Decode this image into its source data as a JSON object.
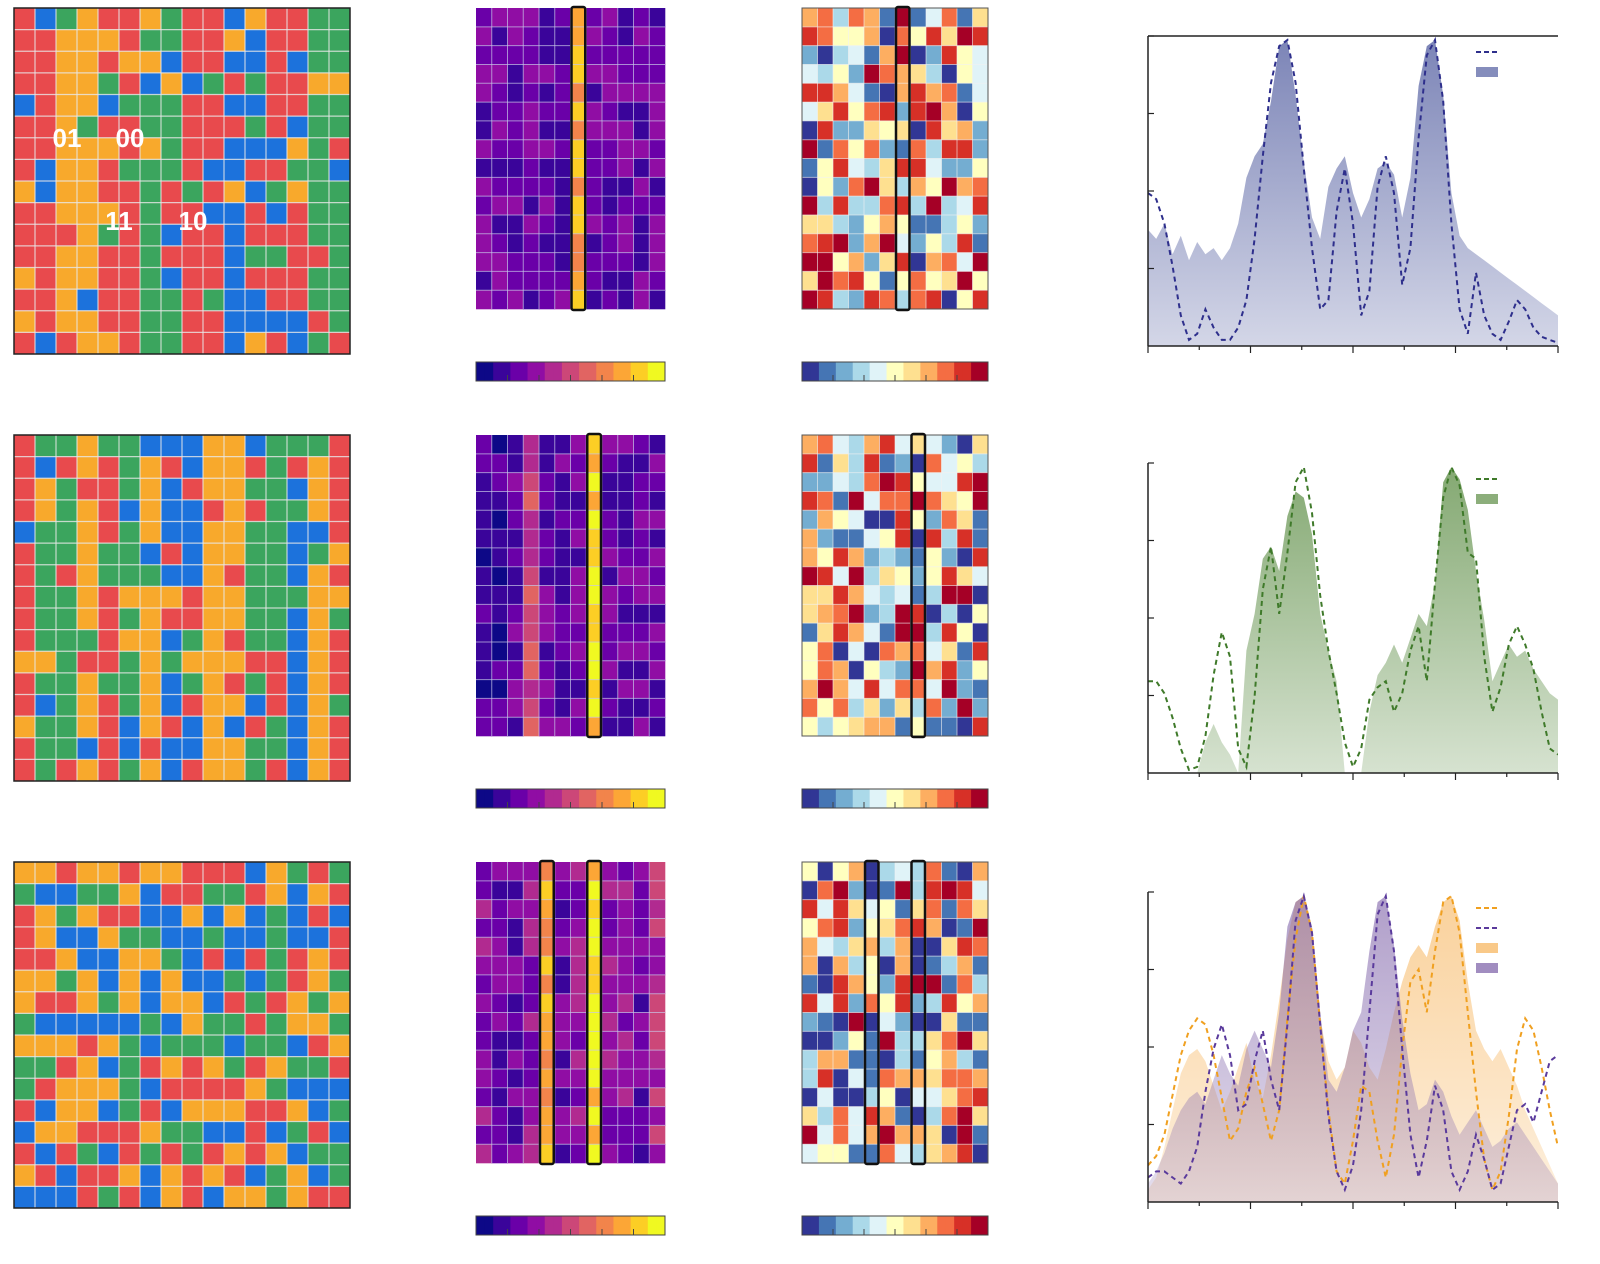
{
  "palette": {
    "coding": {
      "00": "#e84a4d",
      "01": "#f8a92c",
      "10": "#3ba55e",
      "11": "#1c72dc"
    },
    "plasma": [
      "#0d0887",
      "#3a049a",
      "#6a00a8",
      "#900da4",
      "#b12a90",
      "#cc4778",
      "#e16462",
      "#f2844b",
      "#fca636",
      "#fcce25",
      "#f0f921"
    ],
    "rdylbu": [
      "#313695",
      "#4575b4",
      "#74add1",
      "#abd9e9",
      "#e0f3f8",
      "#ffffbf",
      "#fee090",
      "#fdae61",
      "#f46d43",
      "#d73027",
      "#a50026"
    ],
    "series": {
      "blue": "#2e2f8c",
      "green": "#3f7a2a",
      "orange": "#f0a020",
      "purple": "#5a3a9c"
    },
    "fills": {
      "blue": "#6670ab",
      "green": "#6f9a5a",
      "orange": "#f7bb6b",
      "purple": "#8a70b0"
    }
  },
  "coding_labels": [
    "01",
    "00",
    "11",
    "10"
  ],
  "rows": [
    {
      "seed": 11,
      "col_bias": [
        0,
        0,
        1,
        1,
        0,
        0,
        2,
        2,
        0,
        0,
        3,
        3,
        0,
        0,
        2,
        2
      ],
      "highlight_cols": [
        6
      ],
      "plasma_bias": [
        2,
        2,
        2,
        2,
        2,
        2,
        8,
        2,
        2,
        2,
        2,
        2
      ],
      "legend": [
        {
          "kind": "dash",
          "color": "blue"
        },
        {
          "kind": "fill",
          "color": "blue"
        }
      ],
      "chart_data": {
        "type": "area",
        "series": [
          {
            "style": "dashed",
            "color": "blue",
            "values": [
              0.5,
              0.48,
              0.4,
              0.26,
              0.1,
              0.02,
              0.04,
              0.12,
              0.06,
              0.02,
              0.02,
              0.06,
              0.15,
              0.35,
              0.62,
              0.86,
              0.98,
              1.0,
              0.86,
              0.58,
              0.32,
              0.12,
              0.15,
              0.44,
              0.58,
              0.4,
              0.1,
              0.18,
              0.52,
              0.62,
              0.5,
              0.2,
              0.32,
              0.68,
              0.95,
              1.0,
              0.8,
              0.4,
              0.12,
              0.04,
              0.24,
              0.1,
              0.04,
              0.02,
              0.08,
              0.15,
              0.12,
              0.06,
              0.03,
              0.02,
              0.01
            ]
          },
          {
            "style": "filled",
            "color": "blue",
            "values": [
              0.38,
              0.35,
              0.4,
              0.3,
              0.36,
              0.28,
              0.34,
              0.3,
              0.32,
              0.28,
              0.32,
              0.4,
              0.55,
              0.62,
              0.66,
              0.8,
              0.98,
              1.0,
              0.82,
              0.6,
              0.42,
              0.35,
              0.52,
              0.58,
              0.62,
              0.5,
              0.42,
              0.48,
              0.58,
              0.6,
              0.56,
              0.42,
              0.55,
              0.85,
              0.98,
              1.0,
              0.82,
              0.5,
              0.36,
              0.32,
              0.3,
              0.28,
              0.26,
              0.24,
              0.22,
              0.2,
              0.18,
              0.16,
              0.14,
              0.12,
              0.1
            ]
          }
        ]
      }
    },
    {
      "seed": 23,
      "col_bias": [
        0,
        2,
        2,
        1,
        0,
        2,
        1,
        3,
        3,
        1,
        1,
        2,
        2,
        3,
        1,
        0
      ],
      "highlight_cols": [
        7
      ],
      "plasma_bias": [
        1,
        1,
        2,
        5,
        2,
        2,
        2,
        9,
        2,
        2,
        2,
        2
      ],
      "legend": [
        {
          "kind": "dash",
          "color": "green"
        },
        {
          "kind": "fill",
          "color": "green"
        }
      ],
      "chart_data": {
        "type": "area",
        "series": [
          {
            "style": "dashed",
            "color": "green",
            "values": [
              0.3,
              0.3,
              0.26,
              0.18,
              0.08,
              0.01,
              0.02,
              0.12,
              0.32,
              0.46,
              0.38,
              0.08,
              0.02,
              0.25,
              0.6,
              0.74,
              0.52,
              0.72,
              0.95,
              1.0,
              0.85,
              0.58,
              0.4,
              0.26,
              0.1,
              0.02,
              0.08,
              0.24,
              0.28,
              0.3,
              0.2,
              0.26,
              0.4,
              0.48,
              0.3,
              0.62,
              0.9,
              1.0,
              0.94,
              0.72,
              0.7,
              0.38,
              0.2,
              0.28,
              0.42,
              0.48,
              0.42,
              0.34,
              0.2,
              0.08,
              0.06
            ]
          },
          {
            "style": "filled",
            "color": "green",
            "values": [
              0.0,
              0.0,
              0.0,
              0.0,
              0.0,
              0.0,
              0.0,
              0.1,
              0.16,
              0.1,
              0.06,
              0.0,
              0.4,
              0.52,
              0.7,
              0.74,
              0.66,
              0.84,
              0.92,
              0.9,
              0.78,
              0.52,
              0.4,
              0.3,
              0.0,
              0.0,
              0.0,
              0.2,
              0.32,
              0.36,
              0.42,
              0.36,
              0.44,
              0.52,
              0.48,
              0.62,
              0.95,
              1.0,
              0.96,
              0.86,
              0.66,
              0.5,
              0.3,
              0.36,
              0.42,
              0.38,
              0.4,
              0.34,
              0.3,
              0.26,
              0.24
            ]
          }
        ]
      }
    },
    {
      "seed": 37,
      "col_bias": [
        -1,
        -1,
        -1,
        -1,
        -1,
        -1,
        -1,
        -1,
        -1,
        -1,
        -1,
        -1,
        -1,
        -1,
        -1,
        -1
      ],
      "highlight_cols": [
        4,
        7
      ],
      "plasma_bias": [
        3,
        2,
        2,
        3,
        8,
        2,
        3,
        9,
        3,
        3,
        2,
        4
      ],
      "legend": [
        {
          "kind": "dash",
          "color": "orange"
        },
        {
          "kind": "dash",
          "color": "purple"
        },
        {
          "kind": "fill",
          "color": "orange"
        },
        {
          "kind": "fill",
          "color": "purple"
        }
      ],
      "chart_data": {
        "type": "area",
        "series": [
          {
            "style": "dashed",
            "color": "orange",
            "values": [
              0.12,
              0.15,
              0.22,
              0.35,
              0.48,
              0.56,
              0.6,
              0.58,
              0.48,
              0.34,
              0.2,
              0.24,
              0.36,
              0.44,
              0.32,
              0.2,
              0.3,
              0.6,
              0.86,
              1.0,
              0.88,
              0.58,
              0.3,
              0.1,
              0.06,
              0.2,
              0.38,
              0.36,
              0.2,
              0.08,
              0.22,
              0.5,
              0.72,
              0.76,
              0.62,
              0.82,
              0.98,
              1.0,
              0.88,
              0.62,
              0.36,
              0.14,
              0.04,
              0.1,
              0.28,
              0.5,
              0.6,
              0.56,
              0.44,
              0.3,
              0.18
            ]
          },
          {
            "style": "dashed",
            "color": "purple",
            "values": [
              0.08,
              0.1,
              0.1,
              0.08,
              0.06,
              0.1,
              0.18,
              0.36,
              0.5,
              0.58,
              0.48,
              0.3,
              0.32,
              0.46,
              0.56,
              0.4,
              0.3,
              0.58,
              0.92,
              1.0,
              0.88,
              0.58,
              0.28,
              0.1,
              0.04,
              0.12,
              0.3,
              0.62,
              0.94,
              1.0,
              0.82,
              0.5,
              0.22,
              0.08,
              0.2,
              0.38,
              0.3,
              0.1,
              0.04,
              0.1,
              0.22,
              0.14,
              0.04,
              0.06,
              0.18,
              0.3,
              0.32,
              0.26,
              0.36,
              0.46,
              0.48
            ]
          },
          {
            "style": "filled",
            "color": "orange",
            "values": [
              0.04,
              0.08,
              0.18,
              0.3,
              0.42,
              0.48,
              0.5,
              0.46,
              0.38,
              0.3,
              0.36,
              0.44,
              0.52,
              0.4,
              0.34,
              0.48,
              0.66,
              0.86,
              0.98,
              1.0,
              0.88,
              0.6,
              0.46,
              0.4,
              0.44,
              0.56,
              0.52,
              0.44,
              0.4,
              0.5,
              0.62,
              0.72,
              0.8,
              0.84,
              0.8,
              0.9,
              0.98,
              1.0,
              0.92,
              0.72,
              0.56,
              0.5,
              0.46,
              0.5,
              0.44,
              0.38,
              0.3,
              0.24,
              0.18,
              0.12,
              0.06
            ]
          },
          {
            "style": "filled",
            "color": "purple",
            "values": [
              0.06,
              0.1,
              0.16,
              0.24,
              0.3,
              0.34,
              0.36,
              0.32,
              0.4,
              0.48,
              0.42,
              0.38,
              0.5,
              0.56,
              0.5,
              0.44,
              0.62,
              0.9,
              0.98,
              1.0,
              0.9,
              0.62,
              0.4,
              0.36,
              0.44,
              0.56,
              0.62,
              0.82,
              0.98,
              1.0,
              0.84,
              0.6,
              0.42,
              0.3,
              0.32,
              0.4,
              0.36,
              0.28,
              0.22,
              0.26,
              0.3,
              0.24,
              0.18,
              0.2,
              0.24,
              0.26,
              0.22,
              0.18,
              0.14,
              0.1,
              0.06
            ]
          }
        ]
      }
    }
  ]
}
